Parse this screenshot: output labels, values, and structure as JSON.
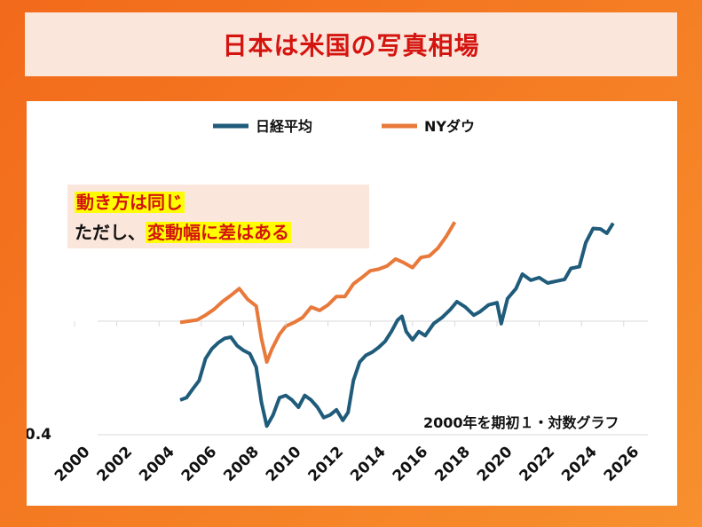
{
  "title": "日本は米国の写真相場",
  "legend": [
    "日経平均",
    "NYダウ"
  ],
  "callout": {
    "line1": "動き方は同じ",
    "line2_prefix": "ただし、",
    "line2_highlight": "変動幅に差はある"
  },
  "note": "2000年を期初１・対数グラフ",
  "colors": {
    "title": "#d4140f",
    "nikkei": "#1f5b7a",
    "dow": "#e8793a",
    "highlight": "#ffff00"
  },
  "chart_data": {
    "type": "line",
    "title": "",
    "xlabel": "",
    "ylabel": "",
    "scale_y": "log",
    "xlim": [
      2000,
      2026
    ],
    "ylim": [
      0.4,
      3.0
    ],
    "x_ticks": [
      "2000",
      "2002",
      "2004",
      "2006",
      "2008",
      "2010",
      "2012",
      "2014",
      "2016",
      "2018",
      "2020",
      "2022",
      "2024",
      "2026"
    ],
    "y_ticks_visible": [
      "0.4"
    ],
    "grid": false,
    "legend_position": "top",
    "series": [
      {
        "name": "日経平均",
        "x": [
          2005.0,
          2005.3,
          2005.6,
          2005.9,
          2006.2,
          2006.5,
          2006.8,
          2007.1,
          2007.4,
          2007.7,
          2008.0,
          2008.3,
          2008.6,
          2008.85,
          2009.1,
          2009.4,
          2009.7,
          2010.0,
          2010.3,
          2010.6,
          2010.9,
          2011.2,
          2011.5,
          2011.8,
          2012.1,
          2012.4,
          2012.7,
          2012.95,
          2013.2,
          2013.5,
          2013.8,
          2014.1,
          2014.4,
          2014.7,
          2015.0,
          2015.3,
          2015.5,
          2015.7,
          2016.0,
          2016.3,
          2016.6,
          2017.0,
          2017.4,
          2017.8,
          2018.1,
          2018.5,
          2018.9,
          2019.2,
          2019.6,
          2020.0,
          2020.2,
          2020.5,
          2020.9,
          2021.2,
          2021.6,
          2022.0,
          2022.4,
          2022.8,
          2023.2,
          2023.5,
          2023.9,
          2024.2,
          2024.55,
          2024.9,
          2025.2,
          2025.5
        ],
        "values": [
          0.53,
          0.54,
          0.58,
          0.62,
          0.74,
          0.8,
          0.84,
          0.87,
          0.88,
          0.82,
          0.79,
          0.77,
          0.69,
          0.52,
          0.43,
          0.47,
          0.54,
          0.55,
          0.53,
          0.5,
          0.55,
          0.53,
          0.5,
          0.46,
          0.47,
          0.49,
          0.45,
          0.48,
          0.62,
          0.72,
          0.76,
          0.78,
          0.81,
          0.85,
          0.92,
          1.01,
          1.04,
          0.92,
          0.86,
          0.92,
          0.89,
          0.98,
          1.03,
          1.1,
          1.17,
          1.12,
          1.05,
          1.08,
          1.14,
          1.16,
          0.98,
          1.2,
          1.3,
          1.46,
          1.39,
          1.42,
          1.36,
          1.38,
          1.4,
          1.53,
          1.55,
          1.88,
          2.11,
          2.1,
          2.03,
          2.2
        ]
      },
      {
        "name": "NYダウ",
        "x": [
          2005.0,
          2005.4,
          2005.8,
          2006.2,
          2006.6,
          2007.0,
          2007.4,
          2007.8,
          2008.2,
          2008.6,
          2008.85,
          2009.1,
          2009.35,
          2009.7,
          2010.0,
          2010.4,
          2010.8,
          2011.2,
          2011.6,
          2012.0,
          2012.4,
          2012.8,
          2013.2,
          2013.6,
          2014.0,
          2014.4,
          2014.8,
          2015.2,
          2015.6,
          2016.0,
          2016.4,
          2016.8,
          2017.2,
          2017.6,
          2018.0
        ],
        "values": [
          0.99,
          1.0,
          1.01,
          1.05,
          1.1,
          1.17,
          1.23,
          1.3,
          1.19,
          1.13,
          0.87,
          0.72,
          0.8,
          0.9,
          0.96,
          0.99,
          1.03,
          1.12,
          1.09,
          1.14,
          1.22,
          1.22,
          1.35,
          1.42,
          1.5,
          1.52,
          1.56,
          1.65,
          1.6,
          1.54,
          1.67,
          1.69,
          1.8,
          1.98,
          2.22
        ]
      }
    ]
  }
}
